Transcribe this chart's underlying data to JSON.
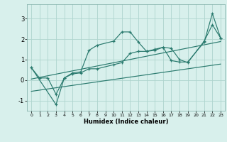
{
  "title": "",
  "xlabel": "Humidex (Indice chaleur)",
  "bg_color": "#d8f0ec",
  "grid_color": "#aed4ce",
  "line_color": "#2a7a6e",
  "xlim": [
    -0.5,
    23.5
  ],
  "ylim": [
    -1.5,
    3.7
  ],
  "xticks": [
    0,
    1,
    2,
    3,
    4,
    5,
    6,
    7,
    8,
    9,
    10,
    11,
    12,
    13,
    14,
    15,
    16,
    17,
    18,
    19,
    20,
    21,
    22,
    23
  ],
  "yticks": [
    -1,
    0,
    1,
    2,
    3
  ],
  "line1_x": [
    0,
    1,
    2,
    3,
    4,
    5,
    6,
    7,
    8,
    10,
    11,
    12,
    13,
    14,
    15,
    16,
    17,
    18,
    19,
    21,
    22,
    23
  ],
  "line1_y": [
    0.6,
    0.1,
    0.1,
    -0.7,
    0.1,
    0.35,
    0.4,
    1.45,
    1.7,
    1.9,
    2.35,
    2.35,
    1.85,
    1.4,
    1.45,
    1.6,
    1.55,
    1.0,
    0.85,
    1.9,
    2.7,
    2.05
  ],
  "line2_x": [
    0,
    3,
    4,
    5,
    6,
    7,
    8,
    10,
    11,
    12,
    13,
    14,
    15,
    16,
    17,
    18,
    19,
    21,
    22,
    23
  ],
  "line2_y": [
    0.6,
    -1.2,
    0.1,
    0.3,
    0.35,
    0.55,
    0.55,
    0.75,
    0.85,
    1.3,
    1.4,
    1.4,
    1.5,
    1.6,
    0.95,
    0.88,
    0.88,
    1.85,
    3.25,
    2.05
  ],
  "line3_x": [
    0,
    23
  ],
  "line3_y": [
    0.05,
    1.88
  ],
  "line4_x": [
    0,
    23
  ],
  "line4_y": [
    -0.55,
    0.78
  ]
}
